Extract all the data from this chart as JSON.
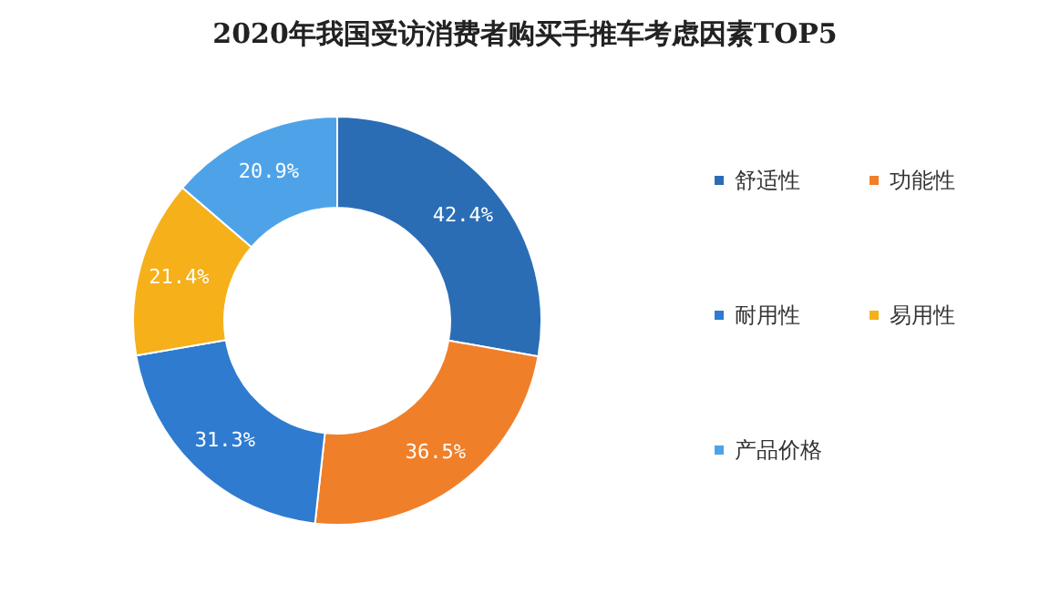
{
  "chart_data": {
    "type": "donut",
    "title": "2020年我国受访消费者购买手推车考虑因素TOP5",
    "categories": [
      "舒适性",
      "功能性",
      "耐用性",
      "易用性",
      "产品价格"
    ],
    "values": [
      42.4,
      36.5,
      31.3,
      21.4,
      20.9
    ],
    "value_labels": [
      "42.4%",
      "36.5%",
      "31.3%",
      "21.4%",
      "20.9%"
    ],
    "colors": [
      "#2a6db5",
      "#f07f2a",
      "#2e7bd0",
      "#f5b01a",
      "#4ea3e8"
    ],
    "legend": "right"
  }
}
